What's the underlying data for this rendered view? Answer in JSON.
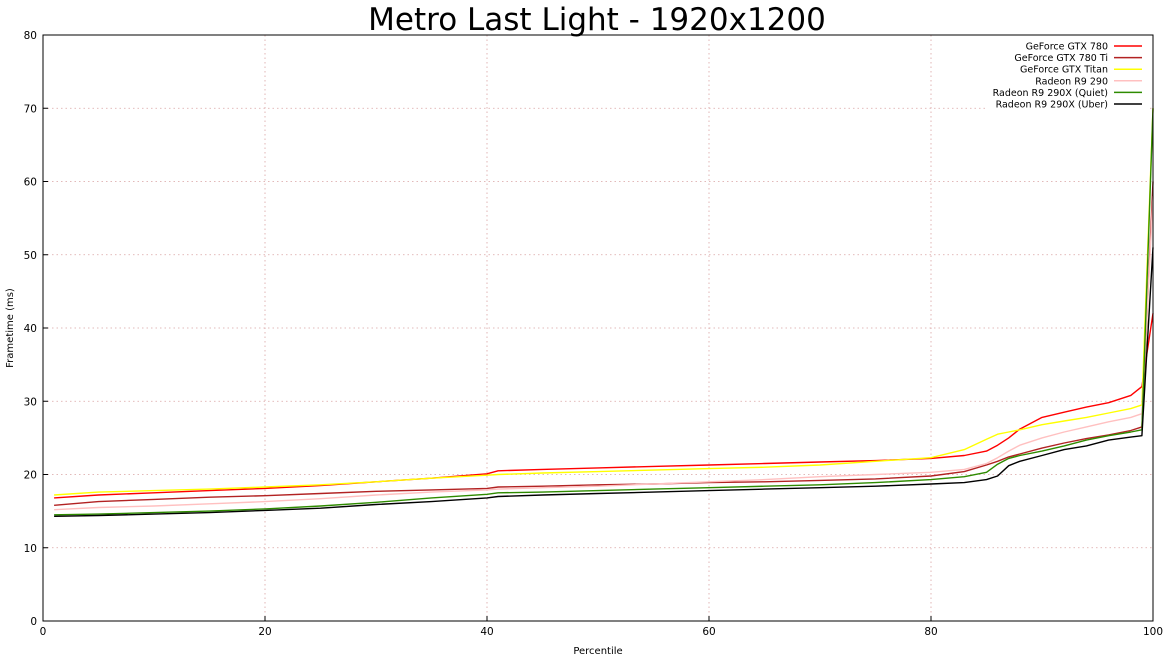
{
  "chart_data": {
    "type": "line",
    "title": "Metro Last Light - 1920x1200",
    "xlabel": "Percentile",
    "ylabel": "Frametime (ms)",
    "xlim": [
      0,
      100
    ],
    "ylim": [
      0,
      80
    ],
    "x_ticks": [
      "0",
      "20",
      "40",
      "60",
      "80",
      "100"
    ],
    "y_ticks": [
      "0",
      "10",
      "20",
      "30",
      "40",
      "50",
      "60",
      "70",
      "80"
    ],
    "grid": true,
    "legend_position": "top-right",
    "x": [
      1,
      5,
      10,
      15,
      20,
      25,
      30,
      35,
      40,
      41,
      45,
      50,
      55,
      60,
      65,
      70,
      75,
      80,
      83,
      85,
      86,
      87,
      88,
      90,
      92,
      94,
      96,
      98,
      99,
      100
    ],
    "series": [
      {
        "name": "GeForce GTX 780",
        "color": "#ff0000",
        "values": [
          16.8,
          17.2,
          17.5,
          17.8,
          18.1,
          18.5,
          19.0,
          19.5,
          20.1,
          20.5,
          20.7,
          20.9,
          21.1,
          21.3,
          21.5,
          21.7,
          21.9,
          22.2,
          22.6,
          23.2,
          24.0,
          25.0,
          26.2,
          27.8,
          28.5,
          29.2,
          29.8,
          30.8,
          32.0,
          42.0
        ]
      },
      {
        "name": "GeForce GTX 780 Ti",
        "color": "#b22222",
        "values": [
          15.8,
          16.3,
          16.6,
          16.9,
          17.1,
          17.4,
          17.7,
          17.9,
          18.1,
          18.3,
          18.4,
          18.6,
          18.7,
          18.9,
          19.0,
          19.2,
          19.4,
          19.8,
          20.4,
          21.3,
          21.8,
          22.4,
          22.8,
          23.6,
          24.3,
          24.9,
          25.4,
          26.0,
          26.5,
          60.0
        ]
      },
      {
        "name": "GeForce GTX Titan",
        "color": "#ffff00",
        "values": [
          17.2,
          17.6,
          17.8,
          18.0,
          18.3,
          18.6,
          19.0,
          19.5,
          19.9,
          20.0,
          20.2,
          20.4,
          20.6,
          20.8,
          21.0,
          21.3,
          21.8,
          22.3,
          23.4,
          24.8,
          25.5,
          25.8,
          26.1,
          26.8,
          27.3,
          27.8,
          28.4,
          29.0,
          29.5,
          70.0
        ]
      },
      {
        "name": "Radeon R9 290",
        "color": "#ffc0c0",
        "values": [
          15.2,
          15.5,
          15.7,
          16.0,
          16.3,
          16.7,
          17.2,
          17.6,
          17.9,
          18.0,
          18.2,
          18.4,
          18.7,
          19.0,
          19.3,
          19.7,
          20.0,
          20.3,
          20.7,
          21.5,
          22.3,
          23.2,
          24.0,
          25.0,
          25.8,
          26.5,
          27.2,
          27.8,
          28.3,
          58.0
        ]
      },
      {
        "name": "Radeon R9 290X (Quiet)",
        "color": "#2e8b00",
        "values": [
          14.5,
          14.6,
          14.8,
          15.0,
          15.3,
          15.7,
          16.2,
          16.8,
          17.3,
          17.5,
          17.6,
          17.8,
          18.0,
          18.2,
          18.4,
          18.6,
          18.9,
          19.3,
          19.7,
          20.3,
          21.4,
          22.2,
          22.6,
          23.2,
          23.9,
          24.7,
          25.3,
          25.8,
          26.1,
          70.0
        ]
      },
      {
        "name": "Radeon R9 290X (Uber)",
        "color": "#000000",
        "values": [
          14.3,
          14.4,
          14.6,
          14.8,
          15.1,
          15.4,
          15.9,
          16.3,
          16.8,
          17.0,
          17.2,
          17.4,
          17.6,
          17.8,
          18.0,
          18.2,
          18.4,
          18.7,
          18.9,
          19.3,
          19.8,
          21.2,
          21.8,
          22.6,
          23.4,
          23.9,
          24.7,
          25.1,
          25.3,
          51.0
        ]
      }
    ]
  }
}
